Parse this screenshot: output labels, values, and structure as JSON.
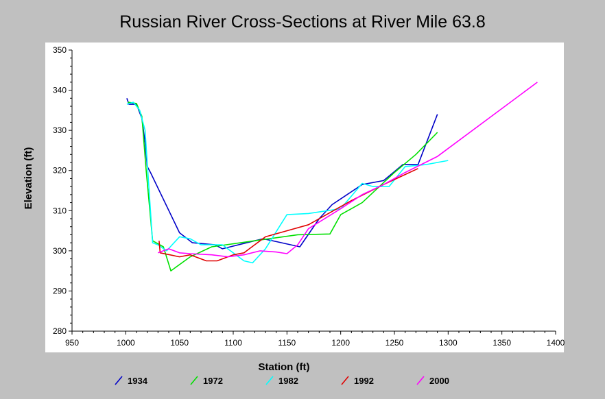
{
  "chart_data": {
    "type": "line",
    "title": "Russian River Cross-Sections at River Mile 63.8",
    "xlabel": "Station (ft)",
    "ylabel": "Elevation (ft)",
    "xlim": [
      950,
      1400
    ],
    "ylim": [
      280,
      350
    ],
    "xticks": [
      950,
      1000,
      1050,
      1100,
      1150,
      1200,
      1250,
      1300,
      1350,
      1400
    ],
    "yticks": [
      280,
      290,
      300,
      310,
      320,
      330,
      340,
      350
    ],
    "x_tick_labels": [
      "950",
      "1000",
      "1050",
      "1100",
      "1150",
      "1200",
      "1250",
      "1300",
      "1350",
      "1400"
    ],
    "y_tick_labels": [
      "280",
      "290",
      "300",
      "310",
      "320",
      "330",
      "340",
      "350"
    ],
    "grid": false,
    "legend_position": "bottom",
    "series": [
      {
        "name": "1934",
        "color": "#0000c8",
        "x": [
          1001,
          1003,
          1010,
          1015,
          1018,
          1020,
          1023,
          1050,
          1062,
          1083,
          1090,
          1120,
          1128,
          1140,
          1162,
          1180,
          1192,
          1220,
          1240,
          1258,
          1272,
          1290
        ],
        "y": [
          338,
          336.5,
          336.5,
          333,
          327,
          321,
          319.5,
          304.5,
          302,
          301.5,
          300.5,
          302.5,
          303,
          302.3,
          301,
          308,
          311.5,
          316.5,
          317.5,
          321.5,
          321.5,
          334
        ]
      },
      {
        "name": "1972",
        "color": "#00e000",
        "x": [
          1002,
          1010,
          1015,
          1019,
          1025,
          1035,
          1042,
          1060,
          1080,
          1120,
          1160,
          1190,
          1200,
          1220,
          1250,
          1270,
          1290
        ],
        "y": [
          337,
          336.7,
          333.5,
          320,
          302.5,
          301,
          295,
          298.5,
          301,
          302.5,
          304,
          304.2,
          309,
          312,
          319.5,
          324,
          329.5
        ]
      },
      {
        "name": "1982",
        "color": "#00ffff",
        "x": [
          1001,
          1007,
          1013,
          1018,
          1025,
          1030,
          1038,
          1050,
          1060,
          1070,
          1090,
          1100,
          1110,
          1118,
          1130,
          1150,
          1170,
          1200,
          1220,
          1230,
          1245,
          1260,
          1280,
          1300
        ],
        "y": [
          336.5,
          337,
          335,
          330,
          302,
          301.5,
          300,
          303.5,
          303,
          301.5,
          301.5,
          299.5,
          297.5,
          297,
          300.5,
          309,
          309.3,
          310.5,
          316.8,
          316,
          316,
          321,
          321.5,
          322.5
        ]
      },
      {
        "name": "1992",
        "color": "#e00000",
        "x": [
          1031,
          1032,
          1050,
          1060,
          1075,
          1085,
          1100,
          1110,
          1115,
          1130,
          1150,
          1170,
          1190,
          1210,
          1240,
          1272
        ],
        "y": [
          302.5,
          299.5,
          298.5,
          299,
          297.5,
          297.5,
          299,
          299.5,
          300.5,
          303.5,
          305,
          306.5,
          309.5,
          312.5,
          316.5,
          320.5
        ]
      },
      {
        "name": "2000",
        "color": "#ff00ff",
        "x": [
          1030,
          1040,
          1050,
          1060,
          1080,
          1095,
          1110,
          1125,
          1140,
          1150,
          1160,
          1170,
          1200,
          1220,
          1240,
          1260,
          1290,
          1383
        ],
        "y": [
          299.5,
          300.5,
          299.5,
          299.3,
          299,
          298.5,
          299,
          300,
          299.7,
          299.3,
          301.5,
          305.5,
          310.5,
          314,
          316.5,
          319.5,
          323.5,
          342
        ]
      }
    ]
  }
}
